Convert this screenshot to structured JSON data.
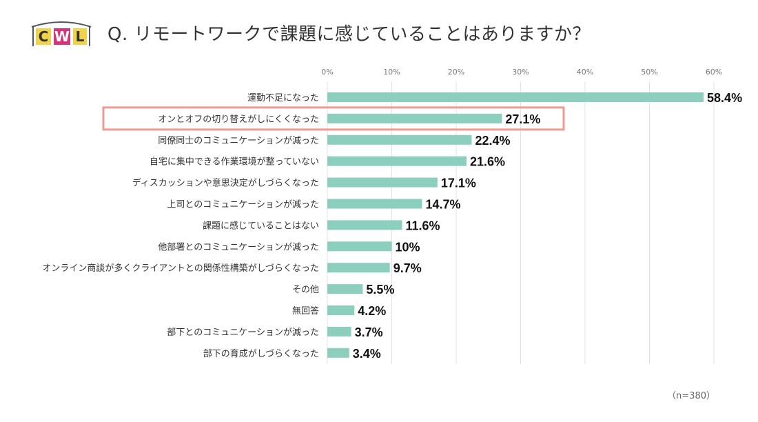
{
  "header": {
    "logo_text": "CWL",
    "title": "Q. リモートワークで課題に感じていることはありますか？"
  },
  "chart_data": {
    "type": "bar",
    "orientation": "horizontal",
    "categories": [
      "運動不足になった",
      "オンとオフの切り替えがしにくくなった",
      "同僚同士のコミュニケーションが減った",
      "自宅に集中できる作業環境が整っていない",
      "ディスカッションや意思決定がしづらくなった",
      "上司とのコミュニケーションが減った",
      "課題に感じていることはない",
      "他部署とのコミュニケーションが減った",
      "オンライン商談が多くクライアントとの関係性構築がしづらくなった",
      "その他",
      "無回答",
      "部下とのコミュニケーションが減った",
      "部下の育成がしづらくなった"
    ],
    "values": [
      58.4,
      27.1,
      22.4,
      21.6,
      17.1,
      14.7,
      11.6,
      10,
      9.7,
      5.5,
      4.2,
      3.7,
      3.4
    ],
    "data_labels": [
      "58.4%",
      "27.1%",
      "22.4%",
      "21.6%",
      "17.1%",
      "14.7%",
      "11.6%",
      "10%",
      "9.7%",
      "5.5%",
      "4.2%",
      "3.7%",
      "3.4%"
    ],
    "x_ticks": [
      0,
      10,
      20,
      30,
      40,
      50,
      60
    ],
    "x_tick_labels": [
      "0%",
      "10%",
      "20%",
      "30%",
      "40%",
      "50%",
      "60%"
    ],
    "xlim": [
      0,
      60
    ],
    "highlighted_category": "オンとオフの切り替えがしにくくなった",
    "grid": true,
    "axis_position": "top",
    "colors": {
      "bar": "#8ccfbe",
      "highlight_border": "#ee9a92",
      "grid": "#e3e3e3"
    }
  },
  "footnote": "（n=380）"
}
